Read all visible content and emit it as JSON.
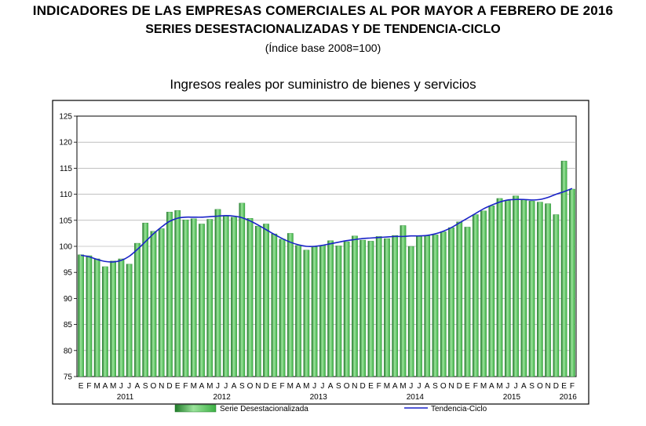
{
  "header": {
    "title_line1": "INDICADORES DE LAS EMPRESAS COMERCIALES AL POR MAYOR A FEBRERO DE 2016",
    "title_line2": "SERIES DESESTACIONALIZADAS Y DE TENDENCIA-CICLO",
    "title_line3": "(Índice base 2008=100)"
  },
  "chart_data": {
    "type": "bar",
    "title": "Ingresos reales por suministro de bienes y servicios",
    "ylim": [
      75,
      125
    ],
    "yticks": [
      75,
      80,
      85,
      90,
      95,
      100,
      105,
      110,
      115,
      120,
      125
    ],
    "grid": true,
    "legend_position": "bottom",
    "colors": {
      "bar": "#3cb044",
      "bar_light": "#9be39b",
      "bar_dark": "#1f7a28",
      "line": "#1a23c8"
    },
    "month_letters": [
      "E",
      "F",
      "M",
      "A",
      "M",
      "J",
      "J",
      "A",
      "S",
      "O",
      "N",
      "D",
      "E",
      "F",
      "M",
      "A",
      "M",
      "J",
      "J",
      "A",
      "S",
      "O",
      "N",
      "D",
      "E",
      "F",
      "M",
      "A",
      "M",
      "J",
      "J",
      "A",
      "S",
      "O",
      "N",
      "D",
      "E",
      "F",
      "M",
      "A",
      "M",
      "J",
      "J",
      "A",
      "S",
      "O",
      "N",
      "D",
      "E",
      "F",
      "M",
      "A",
      "M",
      "J",
      "J",
      "A",
      "S",
      "O",
      "N",
      "D",
      "E",
      "F"
    ],
    "years": [
      {
        "label": "2011",
        "index": 5.5
      },
      {
        "label": "2012",
        "index": 17.5
      },
      {
        "label": "2013",
        "index": 29.5
      },
      {
        "label": "2014",
        "index": 41.5
      },
      {
        "label": "2015",
        "index": 53.5
      },
      {
        "label": "2016",
        "index": 60.5
      }
    ],
    "series": [
      {
        "name": "Serie Desestacionalizada",
        "kind": "bar",
        "values": [
          98.4,
          98.2,
          97.6,
          96.1,
          97.2,
          97.6,
          96.6,
          100.6,
          104.5,
          102.9,
          103.4,
          106.6,
          106.9,
          105.1,
          105.3,
          104.3,
          105.2,
          107.1,
          105.8,
          105.6,
          108.3,
          105.4,
          103.9,
          104.3,
          102.4,
          101.4,
          102.5,
          100.2,
          99.3,
          99.9,
          100.2,
          101.1,
          100.1,
          100.9,
          102.0,
          101.2,
          101.0,
          101.9,
          101.5,
          102.1,
          104.0,
          100.0,
          101.9,
          102.0,
          102.2,
          102.8,
          103.6,
          104.7,
          103.7,
          106.1,
          106.8,
          107.8,
          109.2,
          108.8,
          109.7,
          109.0,
          108.7,
          108.5,
          108.2,
          106.1,
          116.4,
          111.0
        ]
      },
      {
        "name": "Tendencia-Ciclo",
        "kind": "line",
        "values": [
          98.3,
          98.0,
          97.5,
          97.1,
          97.0,
          97.3,
          98.1,
          99.4,
          100.9,
          102.4,
          103.7,
          104.8,
          105.4,
          105.6,
          105.6,
          105.6,
          105.7,
          105.8,
          105.9,
          105.8,
          105.5,
          104.9,
          104.1,
          103.2,
          102.3,
          101.5,
          100.8,
          100.3,
          100.0,
          100.0,
          100.2,
          100.5,
          100.8,
          101.1,
          101.3,
          101.5,
          101.6,
          101.7,
          101.8,
          101.9,
          101.9,
          102.0,
          102.0,
          102.1,
          102.4,
          102.9,
          103.6,
          104.5,
          105.4,
          106.3,
          107.2,
          107.9,
          108.5,
          108.9,
          109.0,
          109.0,
          108.9,
          109.0,
          109.4,
          110.0,
          110.5,
          111.1
        ]
      }
    ]
  }
}
